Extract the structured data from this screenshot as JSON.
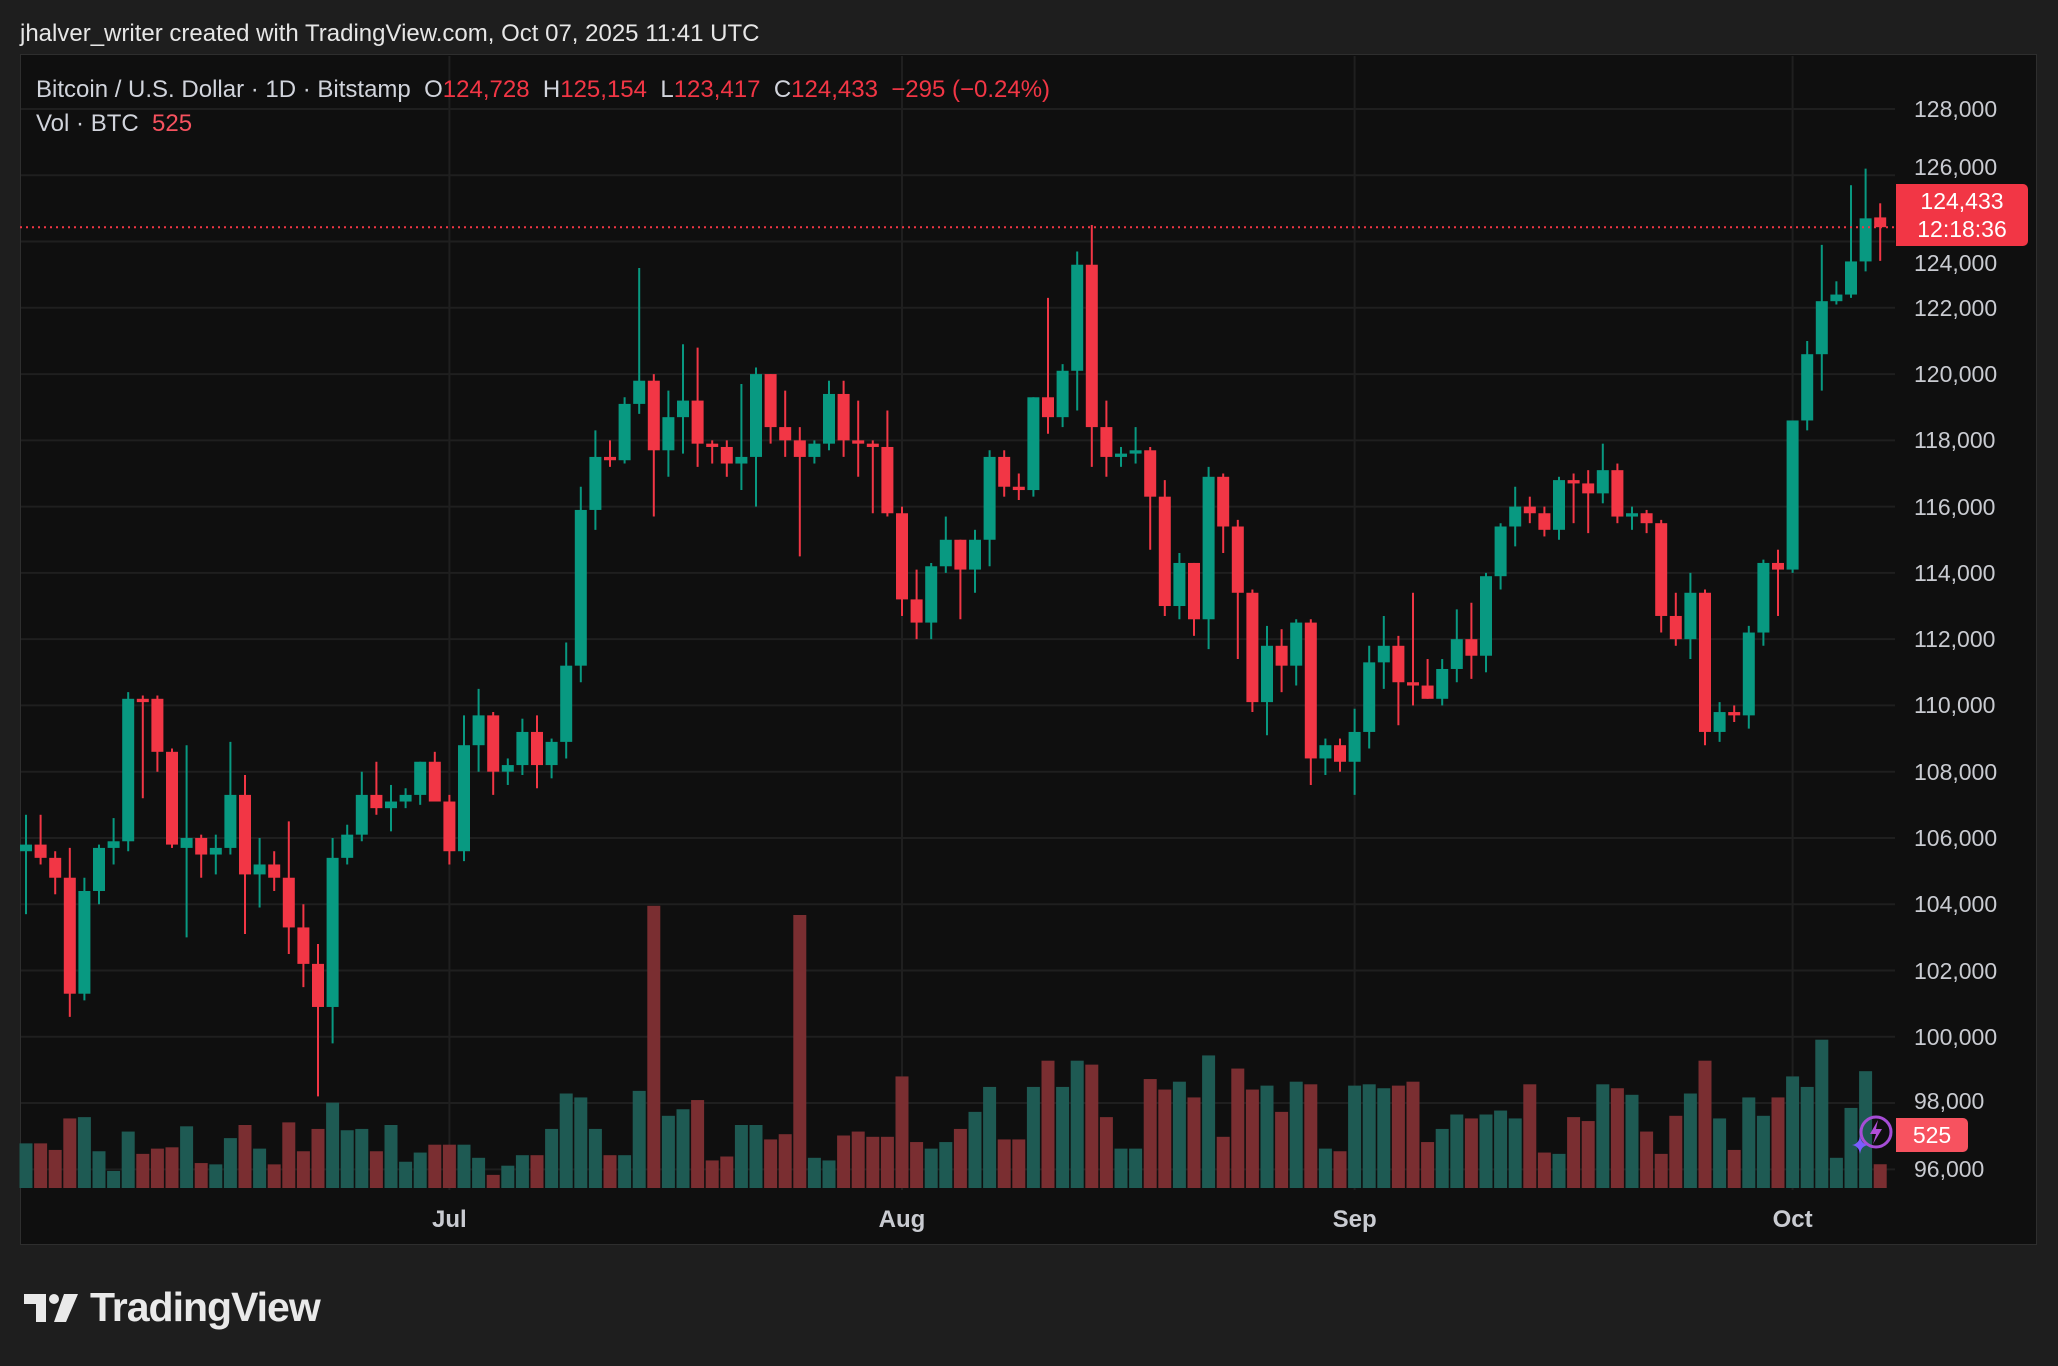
{
  "attribution": "jhalver_writer created with TradingView.com, Oct 07, 2025 11:41 UTC",
  "legend": {
    "symbol": "Bitcoin / U.S. Dollar · 1D · Bitstamp",
    "o_label": "O",
    "o_value": "124,728",
    "h_label": "H",
    "h_value": "125,154",
    "l_label": "L",
    "l_value": "123,417",
    "c_label": "C",
    "c_value": "124,433",
    "change": "−295 (−0.24%)"
  },
  "volume_legend": {
    "label": "Vol · BTC",
    "value": "525"
  },
  "current_price": {
    "value": "124,433",
    "countdown": "12:18:36",
    "price": 124433
  },
  "current_volume": {
    "value": "525"
  },
  "brand": "TradingView",
  "colors": {
    "up": "#089981",
    "down": "#f23645",
    "up_volume": "#1e5a53",
    "down_volume": "#7a2e31",
    "background": "#0f0f0f",
    "grid": "#1f1f1f"
  },
  "icons": [
    "lightning-assistant-icon",
    "tradingview-logo-icon"
  ],
  "chart_data": {
    "type": "candlestick",
    "title": "Bitcoin / U.S. Dollar · 1D · Bitstamp",
    "ylim": [
      95000,
      129500
    ],
    "y_ticks": [
      "128,000",
      "126,000",
      "124,000",
      "122,000",
      "120,000",
      "118,000",
      "116,000",
      "114,000",
      "112,000",
      "110,000",
      "108,000",
      "106,000",
      "104,000",
      "102,000",
      "100,000",
      "98,000",
      "96,000"
    ],
    "y_tick_values": [
      128000,
      126000,
      124000,
      122000,
      120000,
      118000,
      116000,
      114000,
      112000,
      110000,
      108000,
      106000,
      104000,
      102000,
      100000,
      98000,
      96000
    ],
    "x_ticks": [
      {
        "label": "Jul",
        "date": "2025-07-01"
      },
      {
        "label": "Aug",
        "date": "2025-08-01"
      },
      {
        "label": "Sep",
        "date": "2025-09-01"
      },
      {
        "label": "Oct",
        "date": "2025-10-01"
      }
    ],
    "grid": true,
    "columns": [
      "date",
      "open",
      "high",
      "low",
      "close",
      "volume"
    ],
    "candles": [
      [
        "2025-06-02",
        105600,
        106700,
        103700,
        105800,
        986
      ],
      [
        "2025-06-03",
        105800,
        106700,
        105200,
        105400,
        986
      ],
      [
        "2025-06-04",
        105400,
        105600,
        104300,
        104800,
        841
      ],
      [
        "2025-06-05",
        104800,
        105700,
        100600,
        101300,
        1537
      ],
      [
        "2025-06-06",
        101300,
        104800,
        101100,
        104400,
        1566
      ],
      [
        "2025-06-07",
        104400,
        105800,
        104000,
        105700,
        812
      ],
      [
        "2025-06-08",
        105700,
        106600,
        105200,
        105900,
        377
      ],
      [
        "2025-06-09",
        105900,
        110400,
        105600,
        110200,
        1247
      ],
      [
        "2025-06-10",
        110200,
        110300,
        107200,
        110100,
        754
      ],
      [
        "2025-06-11",
        110200,
        110300,
        108000,
        108600,
        870
      ],
      [
        "2025-06-12",
        108600,
        108700,
        105700,
        105800,
        899
      ],
      [
        "2025-06-13",
        105700,
        108800,
        103000,
        106000,
        1363
      ],
      [
        "2025-06-14",
        106000,
        106100,
        104800,
        105500,
        551
      ],
      [
        "2025-06-15",
        105500,
        106100,
        104900,
        105700,
        522
      ],
      [
        "2025-06-16",
        105700,
        108900,
        105500,
        107300,
        1102
      ],
      [
        "2025-06-17",
        107300,
        107900,
        103100,
        104900,
        1392
      ],
      [
        "2025-06-18",
        104900,
        106000,
        103900,
        105200,
        870
      ],
      [
        "2025-06-19",
        105200,
        105600,
        104400,
        104800,
        522
      ],
      [
        "2025-06-20",
        104800,
        106500,
        102500,
        103300,
        1450
      ],
      [
        "2025-06-21",
        103300,
        104000,
        101500,
        102200,
        812
      ],
      [
        "2025-06-22",
        102200,
        102800,
        98200,
        100900,
        1305
      ],
      [
        "2025-06-23",
        100900,
        106000,
        99800,
        105400,
        1885
      ],
      [
        "2025-06-24",
        105400,
        106400,
        105200,
        106100,
        1276
      ],
      [
        "2025-06-25",
        106100,
        108000,
        105900,
        107300,
        1305
      ],
      [
        "2025-06-26",
        107300,
        108300,
        106700,
        106900,
        812
      ],
      [
        "2025-06-27",
        106900,
        107600,
        106200,
        107100,
        1392
      ],
      [
        "2025-06-28",
        107100,
        107500,
        106900,
        107300,
        580
      ],
      [
        "2025-06-29",
        107300,
        108300,
        107000,
        108300,
        783
      ],
      [
        "2025-06-30",
        108300,
        108600,
        107200,
        107100,
        957
      ],
      [
        "2025-07-01",
        107100,
        107300,
        105200,
        105600,
        957
      ],
      [
        "2025-07-02",
        105600,
        109700,
        105300,
        108800,
        957
      ],
      [
        "2025-07-03",
        108800,
        110500,
        108000,
        109700,
        667
      ],
      [
        "2025-07-04",
        109700,
        109800,
        107300,
        108000,
        290
      ],
      [
        "2025-07-05",
        108000,
        108400,
        107600,
        108200,
        493
      ],
      [
        "2025-07-06",
        108200,
        109600,
        107900,
        109200,
        725
      ],
      [
        "2025-07-07",
        109200,
        109700,
        107500,
        108200,
        725
      ],
      [
        "2025-07-08",
        108200,
        109000,
        107800,
        108900,
        1305
      ],
      [
        "2025-07-09",
        108900,
        111900,
        108400,
        111200,
        2088
      ],
      [
        "2025-07-10",
        111200,
        116600,
        110700,
        115900,
        2001
      ],
      [
        "2025-07-11",
        115900,
        118300,
        115300,
        117500,
        1305
      ],
      [
        "2025-07-12",
        117500,
        118000,
        117200,
        117400,
        725
      ],
      [
        "2025-07-13",
        117400,
        119300,
        117300,
        119100,
        725
      ],
      [
        "2025-07-14",
        119100,
        123200,
        118800,
        119800,
        2146
      ],
      [
        "2025-07-15",
        119800,
        120000,
        115700,
        117700,
        6235
      ],
      [
        "2025-07-16",
        117700,
        119500,
        116900,
        118700,
        1595
      ],
      [
        "2025-07-17",
        118700,
        120900,
        117600,
        119200,
        1740
      ],
      [
        "2025-07-18",
        119200,
        120800,
        117200,
        117900,
        1943
      ],
      [
        "2025-07-19",
        117900,
        118000,
        117300,
        117800,
        609
      ],
      [
        "2025-07-20",
        117800,
        118000,
        116900,
        117300,
        696
      ],
      [
        "2025-07-21",
        117300,
        119700,
        116500,
        117500,
        1392
      ],
      [
        "2025-07-22",
        117500,
        120200,
        116000,
        120000,
        1392
      ],
      [
        "2025-07-23",
        120000,
        120000,
        117900,
        118400,
        1073
      ],
      [
        "2025-07-24",
        118400,
        119500,
        117500,
        118000,
        1189
      ],
      [
        "2025-07-25",
        118000,
        118400,
        114500,
        117500,
        6032
      ],
      [
        "2025-07-26",
        117500,
        118000,
        117300,
        117900,
        667
      ],
      [
        "2025-07-27",
        117900,
        119800,
        117700,
        119400,
        609
      ],
      [
        "2025-07-28",
        119400,
        119800,
        117500,
        118000,
        1160
      ],
      [
        "2025-07-29",
        118000,
        119200,
        116900,
        117900,
        1247
      ],
      [
        "2025-07-30",
        117900,
        118000,
        115800,
        117800,
        1131
      ],
      [
        "2025-07-31",
        117800,
        118900,
        115700,
        115800,
        1131
      ],
      [
        "2025-08-01",
        115800,
        116000,
        112700,
        113200,
        2465
      ],
      [
        "2025-08-02",
        113200,
        114100,
        112000,
        112500,
        1015
      ],
      [
        "2025-08-03",
        112500,
        114300,
        112000,
        114200,
        870
      ],
      [
        "2025-08-04",
        114200,
        115700,
        114000,
        115000,
        1015
      ],
      [
        "2025-08-05",
        115000,
        115000,
        112600,
        114100,
        1305
      ],
      [
        "2025-08-06",
        114100,
        115300,
        113400,
        115000,
        1682
      ],
      [
        "2025-08-07",
        115000,
        117700,
        114200,
        117500,
        2233
      ],
      [
        "2025-08-08",
        117500,
        117700,
        116300,
        116600,
        1073
      ],
      [
        "2025-08-09",
        116600,
        117000,
        116200,
        116500,
        1073
      ],
      [
        "2025-08-10",
        116500,
        119300,
        116300,
        119300,
        2233
      ],
      [
        "2025-08-11",
        119300,
        122300,
        118200,
        118700,
        2813
      ],
      [
        "2025-08-12",
        118700,
        120300,
        118400,
        120100,
        2233
      ],
      [
        "2025-08-13",
        120100,
        123700,
        118900,
        123300,
        2813
      ],
      [
        "2025-08-14",
        123300,
        124500,
        117200,
        118400,
        2726
      ],
      [
        "2025-08-15",
        118400,
        119200,
        116900,
        117500,
        1566
      ],
      [
        "2025-08-16",
        117500,
        117800,
        117200,
        117600,
        870
      ],
      [
        "2025-08-17",
        117600,
        118400,
        117300,
        117700,
        870
      ],
      [
        "2025-08-18",
        117700,
        117800,
        114700,
        116300,
        2407
      ],
      [
        "2025-08-19",
        116300,
        116800,
        112700,
        113000,
        2175
      ],
      [
        "2025-08-20",
        113000,
        114600,
        112600,
        114300,
        2349
      ],
      [
        "2025-08-21",
        114300,
        114300,
        112100,
        112600,
        2001
      ],
      [
        "2025-08-22",
        112600,
        117200,
        111700,
        116900,
        2929
      ],
      [
        "2025-08-23",
        116900,
        117000,
        114600,
        115400,
        1131
      ],
      [
        "2025-08-24",
        115400,
        115600,
        111400,
        113400,
        2639
      ],
      [
        "2025-08-25",
        113400,
        113500,
        109800,
        110100,
        2175
      ],
      [
        "2025-08-26",
        110100,
        112400,
        109100,
        111800,
        2262
      ],
      [
        "2025-08-27",
        111800,
        112300,
        110400,
        111200,
        1682
      ],
      [
        "2025-08-28",
        111200,
        112600,
        110600,
        112500,
        2349
      ],
      [
        "2025-08-29",
        112500,
        112600,
        107600,
        108400,
        2291
      ],
      [
        "2025-08-30",
        108400,
        109000,
        107900,
        108800,
        870
      ],
      [
        "2025-08-31",
        108800,
        109000,
        108000,
        108300,
        812
      ],
      [
        "2025-09-01",
        108300,
        109900,
        107300,
        109200,
        2262
      ],
      [
        "2025-09-02",
        109200,
        111800,
        108700,
        111300,
        2291
      ],
      [
        "2025-09-03",
        111300,
        112700,
        110500,
        111800,
        2204
      ],
      [
        "2025-09-04",
        111800,
        112100,
        109400,
        110700,
        2262
      ],
      [
        "2025-09-05",
        110700,
        113400,
        110000,
        110600,
        2349
      ],
      [
        "2025-09-06",
        110600,
        111400,
        110200,
        110200,
        1015
      ],
      [
        "2025-09-07",
        110200,
        111400,
        110000,
        111100,
        1305
      ],
      [
        "2025-09-08",
        111100,
        112900,
        110700,
        112000,
        1624
      ],
      [
        "2025-09-09",
        112000,
        113100,
        110800,
        111500,
        1537
      ],
      [
        "2025-09-10",
        111500,
        114000,
        111000,
        113900,
        1624
      ],
      [
        "2025-09-11",
        113900,
        115500,
        113500,
        115400,
        1711
      ],
      [
        "2025-09-12",
        115400,
        116600,
        114800,
        116000,
        1537
      ],
      [
        "2025-09-13",
        116000,
        116300,
        115500,
        115800,
        2291
      ],
      [
        "2025-09-14",
        115800,
        116000,
        115100,
        115300,
        783
      ],
      [
        "2025-09-15",
        115300,
        116900,
        115000,
        116800,
        754
      ],
      [
        "2025-09-16",
        116800,
        117000,
        115500,
        116700,
        1566
      ],
      [
        "2025-09-17",
        116700,
        117100,
        115200,
        116400,
        1479
      ],
      [
        "2025-09-18",
        116400,
        117900,
        116100,
        117100,
        2291
      ],
      [
        "2025-09-19",
        117100,
        117300,
        115500,
        115700,
        2204
      ],
      [
        "2025-09-20",
        115700,
        116000,
        115300,
        115800,
        2059
      ],
      [
        "2025-09-21",
        115800,
        115900,
        115200,
        115500,
        1247
      ],
      [
        "2025-09-22",
        115500,
        115600,
        112200,
        112700,
        754
      ],
      [
        "2025-09-23",
        112700,
        113400,
        111800,
        112000,
        1595
      ],
      [
        "2025-09-24",
        112000,
        114000,
        111400,
        113400,
        2088
      ],
      [
        "2025-09-25",
        113400,
        113500,
        108800,
        109200,
        2813
      ],
      [
        "2025-09-26",
        109200,
        110100,
        108900,
        109800,
        1537
      ],
      [
        "2025-09-27",
        109800,
        110000,
        109500,
        109700,
        841
      ],
      [
        "2025-09-28",
        109700,
        112400,
        109300,
        112200,
        2001
      ],
      [
        "2025-09-29",
        112200,
        114400,
        111800,
        114300,
        1595
      ],
      [
        "2025-09-30",
        114300,
        114700,
        112700,
        114100,
        2001
      ],
      [
        "2025-10-01",
        114100,
        118600,
        114000,
        118600,
        2465
      ],
      [
        "2025-10-02",
        118600,
        121000,
        118300,
        120600,
        2233
      ],
      [
        "2025-10-03",
        120600,
        123900,
        119500,
        122200,
        3277
      ],
      [
        "2025-10-04",
        122200,
        122800,
        122100,
        122400,
        667
      ],
      [
        "2025-10-05",
        122400,
        125700,
        122300,
        123400,
        1769
      ],
      [
        "2025-10-06",
        123400,
        126200,
        123100,
        124700,
        2581
      ],
      [
        "2025-10-07",
        124728,
        125154,
        123417,
        124433,
        525
      ]
    ]
  }
}
